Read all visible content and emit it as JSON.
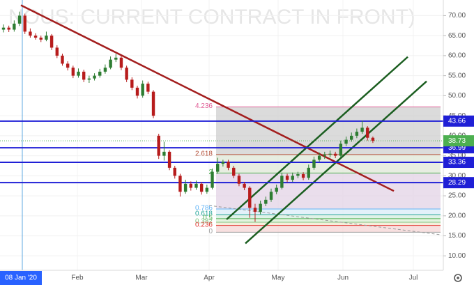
{
  "chart_data": {
    "type": "candlestick",
    "title": "NOUS: CURRENT CONTRACT IN FRONT)",
    "up_color": "#2e7d32",
    "down_color": "#b71c1c",
    "candles": [
      [
        66.5,
        67.8,
        65.8,
        67
      ],
      [
        67,
        67.5,
        65.9,
        66.5
      ],
      [
        66.5,
        68.8,
        66,
        68
      ],
      [
        68,
        71,
        67.4,
        70
      ],
      [
        70,
        70.5,
        65.4,
        66
      ],
      [
        66,
        66.8,
        64.5,
        65
      ],
      [
        65,
        65.6,
        64,
        64.5
      ],
      [
        64.5,
        65,
        63.4,
        64
      ],
      [
        64,
        66,
        63.6,
        65
      ],
      [
        65,
        65.4,
        61.4,
        62
      ],
      [
        62,
        62.6,
        59.4,
        60
      ],
      [
        60,
        60.5,
        57.5,
        58
      ],
      [
        58,
        58.6,
        56.3,
        57
      ],
      [
        57,
        57.5,
        54.4,
        55
      ],
      [
        55,
        56.8,
        54.5,
        56
      ],
      [
        56,
        56.5,
        53.4,
        54
      ],
      [
        54,
        55,
        53.2,
        54.3
      ],
      [
        54.3,
        55.6,
        53.8,
        55
      ],
      [
        55,
        56.7,
        54.5,
        56
      ],
      [
        56,
        57.8,
        55.5,
        57
      ],
      [
        57,
        59.8,
        56.6,
        59
      ],
      [
        59,
        60.4,
        58.4,
        59.5
      ],
      [
        59.5,
        60,
        56.4,
        57
      ],
      [
        57,
        57.5,
        53.4,
        54
      ],
      [
        54,
        54.6,
        51.4,
        52
      ],
      [
        52,
        52.5,
        49.3,
        50
      ],
      [
        50,
        53.8,
        49.5,
        53
      ],
      [
        53,
        53.5,
        50.4,
        51
      ],
      [
        51,
        51.4,
        44.4,
        45
      ],
      [
        40,
        40.5,
        34.2,
        35
      ],
      [
        35,
        38.5,
        33.8,
        36
      ],
      [
        36,
        36.4,
        31.4,
        32
      ],
      [
        32,
        32.5,
        29.3,
        30
      ],
      [
        30,
        30.5,
        24.8,
        26
      ],
      [
        26,
        29,
        25.5,
        28
      ],
      [
        28,
        28.6,
        26.3,
        27
      ],
      [
        27,
        28.8,
        26.5,
        28
      ],
      [
        28,
        28.4,
        25.3,
        26
      ],
      [
        26,
        27.8,
        25.5,
        27
      ],
      [
        27,
        31.8,
        26.6,
        31
      ],
      [
        31,
        34.5,
        30.5,
        33
      ],
      [
        33,
        34,
        32.3,
        33.5
      ],
      [
        33.5,
        34,
        31.4,
        32
      ],
      [
        32,
        32.5,
        29.4,
        30
      ],
      [
        30,
        30.5,
        27.4,
        28
      ],
      [
        28,
        28.5,
        26.4,
        27
      ],
      [
        27,
        27.4,
        19.5,
        22
      ],
      [
        22,
        23,
        18.5,
        21
      ],
      [
        21,
        23.8,
        20.4,
        23
      ],
      [
        23,
        24.8,
        22.4,
        24
      ],
      [
        24,
        26.8,
        23.5,
        26
      ],
      [
        26,
        27.8,
        25.4,
        27
      ],
      [
        27,
        30.8,
        26.6,
        30
      ],
      [
        30,
        30.5,
        28.4,
        29
      ],
      [
        29,
        30.8,
        28.5,
        30
      ],
      [
        30,
        31,
        29.4,
        30.4
      ],
      [
        30.4,
        30.9,
        28.9,
        29.5
      ],
      [
        29.5,
        32.8,
        29,
        32
      ],
      [
        32,
        34.8,
        31.5,
        34
      ],
      [
        34,
        35.8,
        33.5,
        35
      ],
      [
        35,
        36,
        34.2,
        35.3
      ],
      [
        35.3,
        36.3,
        34.6,
        35.5
      ],
      [
        35.5,
        36,
        34.4,
        35
      ],
      [
        35,
        38.8,
        34.6,
        38
      ],
      [
        38,
        39.8,
        37.4,
        39
      ],
      [
        39,
        40.8,
        38.5,
        40
      ],
      [
        40,
        41.8,
        39.4,
        41
      ],
      [
        41,
        43.8,
        40.5,
        42
      ],
      [
        42,
        42.4,
        38.8,
        39.5
      ],
      [
        39.5,
        39.8,
        38.2,
        38.73
      ]
    ],
    "ylim": [
      6.4,
      73.9
    ],
    "yticks": [
      {
        "value": 10,
        "label": "10.00"
      },
      {
        "value": 15,
        "label": "15.00"
      },
      {
        "value": 20,
        "label": "20.00"
      },
      {
        "value": 25,
        "label": "25.00"
      },
      {
        "value": 30,
        "label": "30.00"
      },
      {
        "value": 35,
        "label": "35.00"
      },
      {
        "value": 40,
        "label": "40.00"
      },
      {
        "value": 45,
        "label": "45.00"
      },
      {
        "value": 50,
        "label": "50.00"
      },
      {
        "value": 55,
        "label": "55.00"
      },
      {
        "value": 60,
        "label": "60.00"
      },
      {
        "value": 65,
        "label": "65.00"
      },
      {
        "value": 70,
        "label": "70.00"
      }
    ],
    "x_labels": [
      "08 Jan '20",
      "Feb",
      "Mar",
      "Apr",
      "May",
      "Jun",
      "Jul"
    ],
    "last_price": {
      "value": 38.73,
      "label": "38.73",
      "color": "#4caf50"
    },
    "levels": [
      {
        "value": 43.66,
        "label": "43.66"
      },
      {
        "value": 36.99,
        "label": "36.99"
      },
      {
        "value": 33.36,
        "label": "33.36"
      },
      {
        "value": 28.29,
        "label": "28.29"
      }
    ],
    "level_color": "#1f1fd6",
    "fib_levels": [
      {
        "ratio": 4.236,
        "price": 47.2,
        "color": "#e05c95",
        "fill": "#cfcfcf"
      },
      {
        "ratio": 2.618,
        "price": 35.3,
        "color": "#b5523b",
        "fill": "#dfe7d7"
      },
      {
        "ratio": 2,
        "price": 30.7,
        "color": "#4caf50",
        "fill": "#e3d3e6"
      },
      {
        "ratio": 0.786,
        "price": 21.7,
        "color": "#64b5f6",
        "fill": "#d9ecf7"
      },
      {
        "ratio": 0.618,
        "price": 20.3,
        "color": "#26a69a",
        "fill": "#d6efe0"
      },
      {
        "ratio": 0.5,
        "price": 19.3,
        "color": "#4caf50",
        "fill": "#dcefd4"
      },
      {
        "ratio": 0.382,
        "price": 18.4,
        "color": "#81c784",
        "fill": "#f0e8d0"
      },
      {
        "ratio": 0.236,
        "price": 17.6,
        "color": "#e53935",
        "fill": "#f6d5d5"
      },
      {
        "ratio": 0,
        "price": 15.9,
        "color": "#9e9e9e",
        "fill": "none"
      }
    ],
    "trendlines": [
      {
        "from": 72.6,
        "to": 26.2,
        "color": "#a31e1e"
      },
      {
        "from": 19.1,
        "to": 59.7,
        "color": "#1b5e20"
      },
      {
        "from": 13.1,
        "to": 53.6,
        "color": "#1b5e20"
      }
    ]
  }
}
